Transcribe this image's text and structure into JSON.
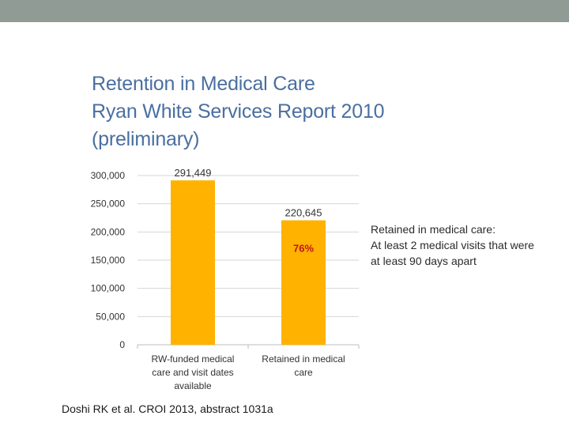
{
  "title": {
    "line1": "Retention in Medical Care",
    "line2": "Ryan White Services Report 2010",
    "line3": "(preliminary)"
  },
  "chart_data": {
    "type": "bar",
    "categories": [
      [
        "RW-funded medical",
        "care and visit dates",
        "available"
      ],
      [
        "Retained in medical",
        "care"
      ]
    ],
    "values": [
      291449,
      220645
    ],
    "data_labels": [
      "291,449",
      "220,645"
    ],
    "inner_labels": [
      "",
      "76%"
    ],
    "ylim": [
      0,
      300000
    ],
    "yticks": [
      0,
      50000,
      100000,
      150000,
      200000,
      250000,
      300000
    ],
    "ytick_labels": [
      "0",
      "50,000",
      "100,000",
      "150,000",
      "200,000",
      "250,000",
      "300,000"
    ],
    "grid": true,
    "bar_color": "#ffb200",
    "inner_label_color": "#c0151b",
    "title": "",
    "xlabel": "",
    "ylabel": ""
  },
  "note": {
    "line1": "Retained in medical care:",
    "line2": "At least 2 medical visits that were",
    "line3": "at least 90 days apart"
  },
  "citation": "Doshi RK et al. CROI 2013, abstract 1031a"
}
